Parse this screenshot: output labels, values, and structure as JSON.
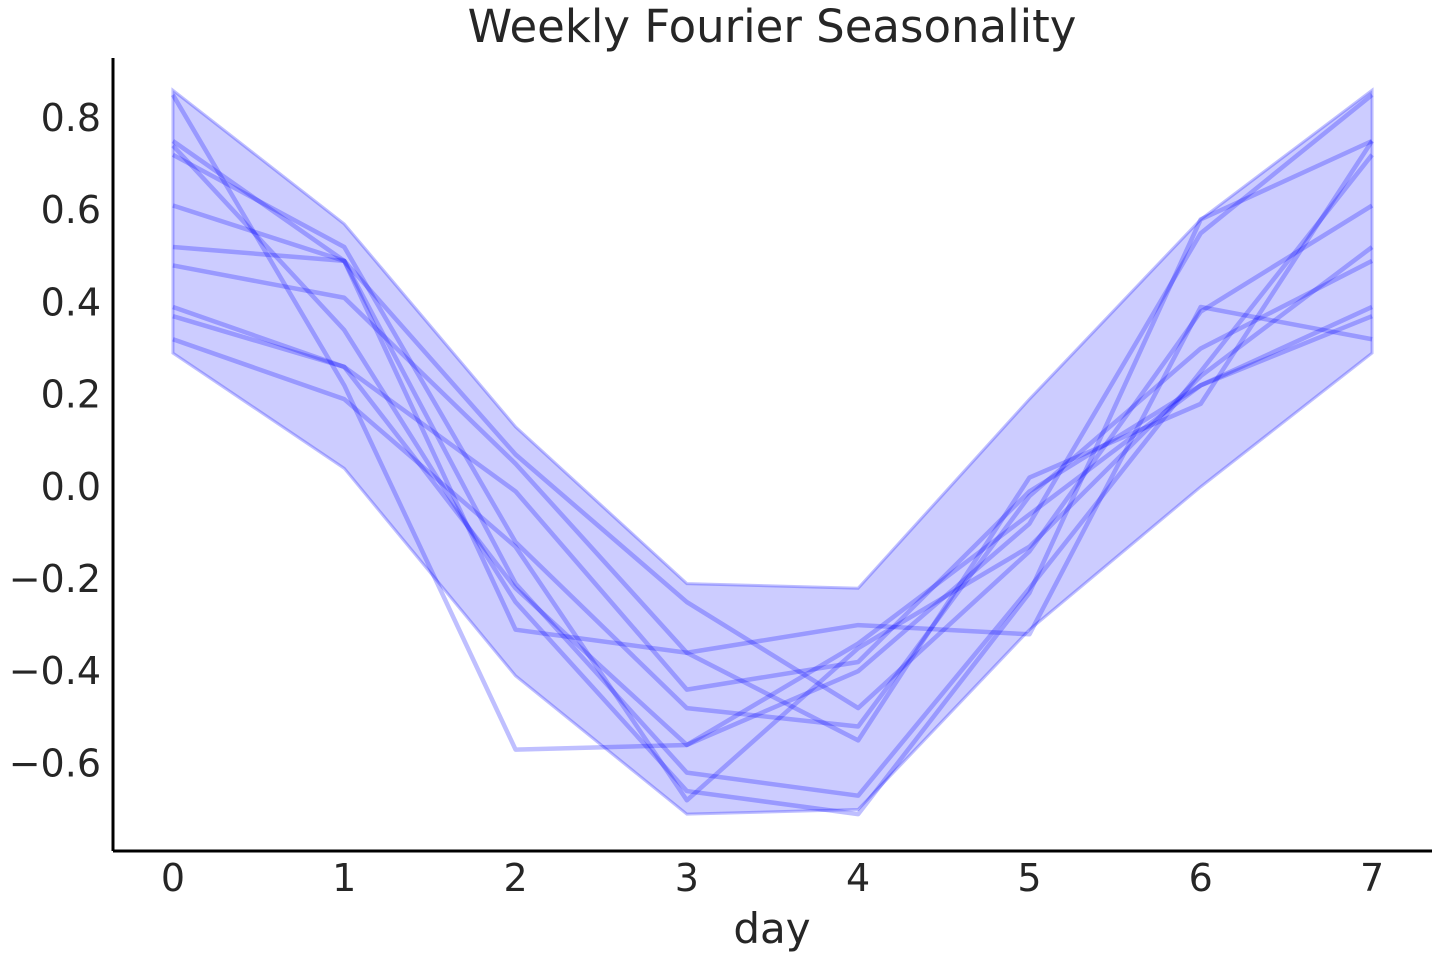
{
  "chart_data": {
    "type": "line",
    "title": "Weekly Fourier Seasonality",
    "xlabel": "day",
    "ylabel": "",
    "x": [
      0,
      1,
      2,
      3,
      4,
      5,
      6,
      7
    ],
    "xticks": [
      "0",
      "1",
      "2",
      "3",
      "4",
      "5",
      "6",
      "7"
    ],
    "yticks": [
      0.8,
      0.6,
      0.4,
      0.2,
      0.0,
      -0.2,
      -0.4,
      -0.6
    ],
    "ytick_labels": [
      "0.8",
      "0.6",
      "0.4",
      "0.2",
      "0.0",
      "−0.2",
      "−0.4",
      "−0.6"
    ],
    "xlim": [
      -0.35,
      7.35
    ],
    "ylim": [
      -0.79,
      0.93
    ],
    "grid": false,
    "line_color": "#0000ff",
    "band_color": "#0000ff",
    "band": {
      "lower": [
        0.29,
        0.04,
        -0.41,
        -0.71,
        -0.7,
        -0.31,
        0.0,
        0.29
      ],
      "upper": [
        0.86,
        0.57,
        0.13,
        -0.21,
        -0.22,
        0.19,
        0.58,
        0.86
      ]
    },
    "series": [
      {
        "values": [
          0.85,
          0.22,
          -0.57,
          -0.56,
          -0.4,
          -0.08,
          0.55,
          0.85
        ]
      },
      {
        "values": [
          0.75,
          0.49,
          -0.31,
          -0.36,
          -0.3,
          -0.32,
          0.39,
          0.32
        ]
      },
      {
        "values": [
          0.74,
          0.34,
          -0.25,
          -0.66,
          -0.71,
          -0.23,
          0.58,
          0.75
        ]
      },
      {
        "values": [
          0.72,
          0.52,
          -0.12,
          -0.48,
          -0.52,
          -0.02,
          0.3,
          0.49
        ]
      },
      {
        "values": [
          0.61,
          0.49,
          -0.21,
          -0.62,
          -0.67,
          -0.22,
          0.25,
          0.72
        ]
      },
      {
        "values": [
          0.52,
          0.49,
          0.07,
          -0.25,
          -0.48,
          -0.14,
          0.38,
          0.61
        ]
      },
      {
        "values": [
          0.48,
          0.41,
          0.05,
          -0.36,
          -0.55,
          0.02,
          0.18,
          0.75
        ]
      },
      {
        "values": [
          0.39,
          0.26,
          -0.01,
          -0.44,
          -0.38,
          -0.01,
          0.22,
          0.37
        ]
      },
      {
        "values": [
          0.37,
          0.26,
          -0.22,
          -0.56,
          -0.34,
          -0.06,
          0.22,
          0.39
        ]
      },
      {
        "values": [
          0.32,
          0.19,
          -0.13,
          -0.68,
          -0.35,
          -0.13,
          0.24,
          0.52
        ]
      }
    ]
  }
}
